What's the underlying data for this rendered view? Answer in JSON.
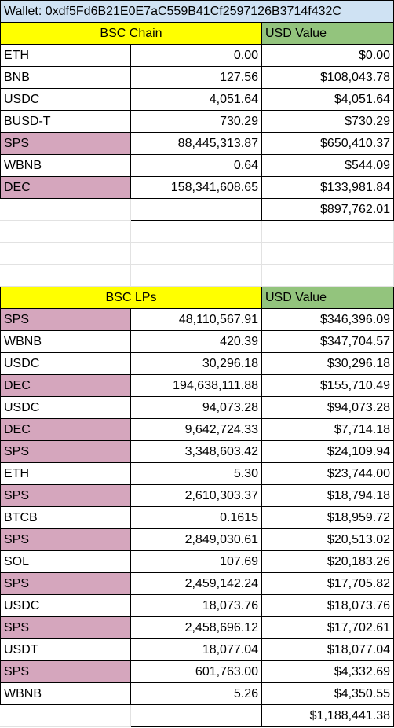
{
  "wallet_label": "Wallet: 0xdf5Fd6B21E0E7aC559B41Cf2597126B3714f432C",
  "bsc_chain": {
    "header": "BSC Chain",
    "value_header": "USD Value",
    "rows": [
      {
        "token": "ETH",
        "amount": "0.00",
        "usd": "$0.00",
        "highlight": false
      },
      {
        "token": "BNB",
        "amount": "127.56",
        "usd": "$108,043.78",
        "highlight": false
      },
      {
        "token": "USDC",
        "amount": "4,051.64",
        "usd": "$4,051.64",
        "highlight": false
      },
      {
        "token": "BUSD-T",
        "amount": "730.29",
        "usd": "$730.29",
        "highlight": false
      },
      {
        "token": "SPS",
        "amount": "88,445,313.87",
        "usd": "$650,410.37",
        "highlight": true
      },
      {
        "token": "WBNB",
        "amount": "0.64",
        "usd": "$544.09",
        "highlight": false
      },
      {
        "token": "DEC",
        "amount": "158,341,608.65",
        "usd": "$133,981.84",
        "highlight": true
      }
    ],
    "total": "$897,762.01"
  },
  "bsc_lps": {
    "header": "BSC LPs",
    "value_header": "USD Value",
    "rows": [
      {
        "token": "SPS",
        "amount": "48,110,567.91",
        "usd": "$346,396.09",
        "highlight": true
      },
      {
        "token": "WBNB",
        "amount": "420.39",
        "usd": "$347,704.57",
        "highlight": false
      },
      {
        "token": "USDC",
        "amount": "30,296.18",
        "usd": "$30,296.18",
        "highlight": false
      },
      {
        "token": "DEC",
        "amount": "194,638,111.88",
        "usd": "$155,710.49",
        "highlight": true
      },
      {
        "token": "USDC",
        "amount": "94,073.28",
        "usd": "$94,073.28",
        "highlight": false
      },
      {
        "token": "DEC",
        "amount": "9,642,724.33",
        "usd": "$7,714.18",
        "highlight": true
      },
      {
        "token": "SPS",
        "amount": "3,348,603.42",
        "usd": "$24,109.94",
        "highlight": true
      },
      {
        "token": "ETH",
        "amount": "5.30",
        "usd": "$23,744.00",
        "highlight": false
      },
      {
        "token": "SPS",
        "amount": "2,610,303.37",
        "usd": "$18,794.18",
        "highlight": true
      },
      {
        "token": "BTCB",
        "amount": "0.1615",
        "usd": "$18,959.72",
        "highlight": false
      },
      {
        "token": "SPS",
        "amount": "2,849,030.61",
        "usd": "$20,513.02",
        "highlight": true
      },
      {
        "token": "SOL",
        "amount": "107.69",
        "usd": "$20,183.26",
        "highlight": false
      },
      {
        "token": "SPS",
        "amount": "2,459,142.24",
        "usd": "$17,705.82",
        "highlight": true
      },
      {
        "token": "USDC",
        "amount": "18,073.76",
        "usd": "$18,073.76",
        "highlight": false
      },
      {
        "token": "SPS",
        "amount": "2,458,696.12",
        "usd": "$17,702.61",
        "highlight": true
      },
      {
        "token": "USDT",
        "amount": "18,077.04",
        "usd": "$18,077.04",
        "highlight": false
      },
      {
        "token": "SPS",
        "amount": "601,763.00",
        "usd": "$4,332.69",
        "highlight": true
      },
      {
        "token": "WBNB",
        "amount": "5.26",
        "usd": "$4,350.55",
        "highlight": false
      }
    ],
    "total": "$1,188,441.38"
  },
  "colors": {
    "wallet_bg": "#cfe2f3",
    "header_yellow": "#ffff00",
    "header_green": "#93c47d",
    "highlight_pink": "#d5a6bd"
  }
}
